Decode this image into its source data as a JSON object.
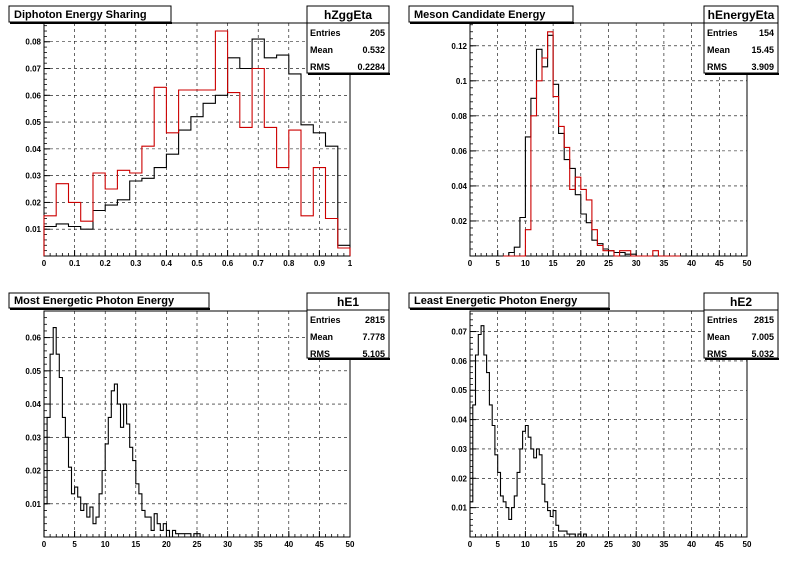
{
  "footer_text": "",
  "chart_data": [
    {
      "type": "histogram",
      "title": "Diphoton Energy Sharing",
      "stats": {
        "name": "hZggEta",
        "entries": "205",
        "mean": "0.532",
        "rms": "0.2284"
      },
      "xlim": [
        0,
        1
      ],
      "ylim": [
        0,
        0.087
      ],
      "x_ticks": [
        "0",
        "0.1",
        "0.2",
        "0.3",
        "0.4",
        "0.5",
        "0.6",
        "0.7",
        "0.8",
        "0.9",
        "1"
      ],
      "x_tick_values": [
        0,
        0.1,
        0.2,
        0.3,
        0.4,
        0.5,
        0.6,
        0.7,
        0.8,
        0.9,
        1
      ],
      "y_ticks": [
        "0.01",
        "0.02",
        "0.03",
        "0.04",
        "0.05",
        "0.06",
        "0.07",
        "0.08"
      ],
      "y_tick_values": [
        0.01,
        0.02,
        0.03,
        0.04,
        0.05,
        0.06,
        0.07,
        0.08
      ],
      "bin_edges": [
        0,
        0.04,
        0.08,
        0.12,
        0.16,
        0.2,
        0.24,
        0.28,
        0.32,
        0.36,
        0.4,
        0.44,
        0.48,
        0.52,
        0.56,
        0.6,
        0.64,
        0.68,
        0.72,
        0.76,
        0.8,
        0.84,
        0.88,
        0.92,
        0.96,
        1.0
      ],
      "series": [
        {
          "color": "#000000",
          "values": [
            0.011,
            0.012,
            0.011,
            0.01,
            0.017,
            0.019,
            0.021,
            0.028,
            0.029,
            0.033,
            0.038,
            0.047,
            0.052,
            0.057,
            0.06,
            0.074,
            0.07,
            0.081,
            0.074,
            0.075,
            0.068,
            0.049,
            0.046,
            0.041,
            0.004
          ]
        },
        {
          "color": "#cc0000",
          "values": [
            0.015,
            0.027,
            0.02,
            0.013,
            0.031,
            0.025,
            0.032,
            0.031,
            0.041,
            0.063,
            0.046,
            0.062,
            0.062,
            0.062,
            0.084,
            0.061,
            0.048,
            0.07,
            0.048,
            0.033,
            0.047,
            0.015,
            0.033,
            0.014,
            0.003
          ]
        }
      ]
    },
    {
      "type": "histogram",
      "title": "Meson Candidate Energy",
      "stats": {
        "name": "hEnergyEta",
        "entries": "154",
        "mean": "15.45",
        "rms": "3.909"
      },
      "xlim": [
        0,
        50
      ],
      "ylim": [
        0,
        0.133
      ],
      "x_ticks": [
        "0",
        "5",
        "10",
        "15",
        "20",
        "25",
        "30",
        "35",
        "40",
        "45",
        "50"
      ],
      "x_tick_values": [
        0,
        5,
        10,
        15,
        20,
        25,
        30,
        35,
        40,
        45,
        50
      ],
      "y_ticks": [
        "0.02",
        "0.04",
        "0.06",
        "0.08",
        "0.1",
        "0.12"
      ],
      "y_tick_values": [
        0.02,
        0.04,
        0.06,
        0.08,
        0.1,
        0.12
      ],
      "bin_edges": [
        6,
        7,
        8,
        9,
        10,
        11,
        12,
        13,
        14,
        15,
        16,
        17,
        18,
        19,
        20,
        21,
        22,
        23,
        24,
        25,
        26,
        27,
        28,
        29,
        30,
        31,
        32,
        33,
        34,
        35,
        36,
        37,
        38
      ],
      "series": [
        {
          "color": "#000000",
          "values": [
            0.0,
            0.002,
            0.005,
            0.022,
            0.068,
            0.09,
            0.118,
            0.108,
            0.126,
            0.098,
            0.07,
            0.055,
            0.05,
            0.035,
            0.024,
            0.019,
            0.009,
            0.007,
            0.004,
            0.003,
            0.002,
            0.002,
            0.001,
            0.001,
            0.0,
            0.0,
            0.0,
            0.0,
            0.0,
            0.0,
            0.0,
            0.0
          ]
        },
        {
          "color": "#cc0000",
          "values": [
            0.0,
            0.0,
            0.0,
            0.0,
            0.015,
            0.08,
            0.1,
            0.113,
            0.128,
            0.091,
            0.074,
            0.062,
            0.038,
            0.045,
            0.038,
            0.032,
            0.015,
            0.006,
            0.003,
            0.003,
            0.0,
            0.003,
            0.003,
            0.0,
            0.0,
            0.0,
            0.0,
            0.003,
            0.0,
            0.0,
            0.0,
            0.0
          ]
        }
      ]
    },
    {
      "type": "histogram",
      "title": "Most Energetic Photon Energy",
      "stats": {
        "name": "hE1",
        "entries": "2815",
        "mean": "7.778",
        "rms": "5.105"
      },
      "xlim": [
        0,
        50
      ],
      "ylim": [
        0,
        0.068
      ],
      "x_ticks": [
        "0",
        "5",
        "10",
        "15",
        "20",
        "25",
        "30",
        "35",
        "40",
        "45",
        "50"
      ],
      "x_tick_values": [
        0,
        5,
        10,
        15,
        20,
        25,
        30,
        35,
        40,
        45,
        50
      ],
      "y_ticks": [
        "0.01",
        "0.02",
        "0.03",
        "0.04",
        "0.05",
        "0.06"
      ],
      "y_tick_values": [
        0.01,
        0.02,
        0.03,
        0.04,
        0.05,
        0.06
      ],
      "bin_start": 0,
      "bin_width": 0.5,
      "series": [
        {
          "color": "#000000",
          "values": [
            0.01,
            0.036,
            0.055,
            0.063,
            0.055,
            0.048,
            0.036,
            0.03,
            0.021,
            0.013,
            0.015,
            0.012,
            0.008,
            0.01,
            0.006,
            0.009,
            0.004,
            0.006,
            0.013,
            0.02,
            0.028,
            0.036,
            0.044,
            0.046,
            0.04,
            0.033,
            0.04,
            0.034,
            0.027,
            0.023,
            0.016,
            0.013,
            0.008,
            0.006,
            0.006,
            0.002,
            0.007,
            0.004,
            0.002,
            0.004,
            0.002,
            0.0,
            0.002,
            0.001,
            0.001,
            0.001,
            0.001,
            0.001,
            0.0,
            0.001,
            0.001,
            0.0,
            0.0,
            0.0,
            0.0,
            0.0,
            0.0,
            0.0,
            0.0,
            0.0
          ]
        }
      ]
    },
    {
      "type": "histogram",
      "title": "Least Energetic Photon Energy",
      "stats": {
        "name": "hE2",
        "entries": "2815",
        "mean": "7.005",
        "rms": "5.032"
      },
      "xlim": [
        0,
        50
      ],
      "ylim": [
        0,
        0.077
      ],
      "x_ticks": [
        "0",
        "5",
        "10",
        "15",
        "20",
        "25",
        "30",
        "35",
        "40",
        "45",
        "50"
      ],
      "x_tick_values": [
        0,
        5,
        10,
        15,
        20,
        25,
        30,
        35,
        40,
        45,
        50
      ],
      "y_ticks": [
        "0.01",
        "0.02",
        "0.03",
        "0.04",
        "0.05",
        "0.06",
        "0.07"
      ],
      "y_tick_values": [
        0.01,
        0.02,
        0.03,
        0.04,
        0.05,
        0.06,
        0.07
      ],
      "bin_start": 0,
      "bin_width": 0.5,
      "series": [
        {
          "color": "#000000",
          "values": [
            0.012,
            0.045,
            0.062,
            0.069,
            0.072,
            0.062,
            0.056,
            0.045,
            0.038,
            0.028,
            0.022,
            0.014,
            0.012,
            0.01,
            0.006,
            0.01,
            0.014,
            0.022,
            0.03,
            0.036,
            0.038,
            0.034,
            0.03,
            0.027,
            0.03,
            0.028,
            0.018,
            0.012,
            0.009,
            0.007,
            0.009,
            0.004,
            0.002,
            0.002,
            0.002,
            0.001,
            0.001,
            0.001,
            0.0,
            0.001,
            0.0,
            0.001,
            0.0,
            0.0,
            0.0,
            0.0,
            0.0,
            0.0,
            0.0,
            0.0,
            0.0,
            0.0,
            0.0,
            0.0,
            0.0,
            0.0,
            0.0,
            0.0,
            0.0,
            0.0
          ]
        }
      ]
    }
  ]
}
